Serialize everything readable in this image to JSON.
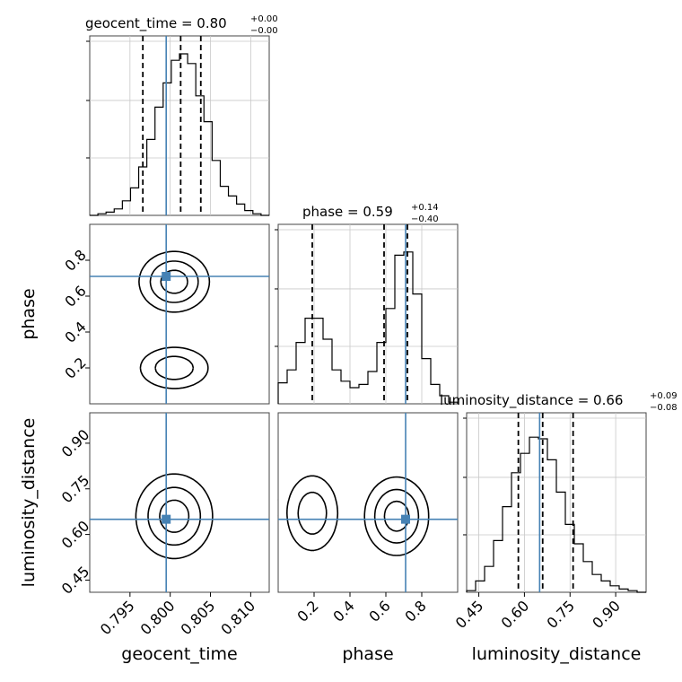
{
  "chart_data": {
    "type": "corner",
    "truth_color": "#4682b4",
    "parameters": [
      "geocent_time",
      "phase",
      "luminosity_distance"
    ],
    "truths": {
      "geocent_time": 0.7995,
      "phase": 0.71,
      "luminosity_distance": 0.65
    },
    "titles": {
      "geocent_time": {
        "text": "geocent_time = 0.80",
        "plus": "+0.00",
        "minus": "−0.00"
      },
      "phase": {
        "text": "phase = 0.59",
        "plus": "+0.14",
        "minus": "−0.40"
      },
      "luminosity_distance": {
        "text": "luminosity_distance = 0.66",
        "plus": "+0.09",
        "minus": "−0.08"
      }
    },
    "quantiles": {
      "geocent_time": [
        0.7966,
        0.8013,
        0.8038
      ],
      "phase": [
        0.19,
        0.59,
        0.72
      ],
      "luminosity_distance": [
        0.58,
        0.66,
        0.76
      ]
    },
    "axes": {
      "geocent_time": {
        "range": [
          0.79,
          0.8123
        ],
        "ticks": [
          0.795,
          0.8,
          0.805,
          0.81
        ],
        "tick_labels": [
          "0.795",
          "0.800",
          "0.805",
          "0.810"
        ],
        "label": "geocent_time"
      },
      "phase": {
        "range": [
          0.0,
          1.0
        ],
        "ticks": [
          0.2,
          0.4,
          0.6,
          0.8
        ],
        "tick_labels": [
          "0.2",
          "0.4",
          "0.6",
          "0.8"
        ],
        "label": "phase"
      },
      "luminosity_distance": {
        "range": [
          0.41,
          1.0
        ],
        "ticks": [
          0.45,
          0.6,
          0.75,
          0.9
        ],
        "tick_labels": [
          "0.45",
          "0.60",
          "0.75",
          "0.90"
        ],
        "label": "luminosity_distance"
      }
    },
    "histograms": {
      "geocent_time": [
        0.0,
        0.01,
        0.02,
        0.04,
        0.09,
        0.17,
        0.3,
        0.47,
        0.67,
        0.82,
        0.96,
        1.0,
        0.94,
        0.74,
        0.58,
        0.34,
        0.18,
        0.12,
        0.07,
        0.03,
        0.01,
        0.0
      ],
      "phase": [
        0.13,
        0.21,
        0.38,
        0.53,
        0.53,
        0.4,
        0.21,
        0.14,
        0.1,
        0.12,
        0.2,
        0.38,
        0.59,
        0.92,
        0.94,
        0.68,
        0.28,
        0.12,
        0.05,
        0.01
      ],
      "luminosity_distance": [
        0.01,
        0.07,
        0.16,
        0.32,
        0.53,
        0.74,
        0.86,
        0.96,
        0.95,
        0.82,
        0.62,
        0.42,
        0.3,
        0.19,
        0.11,
        0.07,
        0.04,
        0.02,
        0.01,
        0.0
      ]
    },
    "joint_modes": [
      {
        "x": "geocent_time",
        "y": "phase",
        "peaks": [
          {
            "cx": 0.8005,
            "cy": 0.68,
            "sx": 0.0022,
            "sy": 0.085,
            "w": 1.0
          },
          {
            "cx": 0.8005,
            "cy": 0.2,
            "sx": 0.0024,
            "sy": 0.065,
            "w": 0.65
          }
        ]
      },
      {
        "x": "geocent_time",
        "y": "luminosity_distance",
        "peaks": [
          {
            "cx": 0.8005,
            "cy": 0.66,
            "sx": 0.0024,
            "sy": 0.07,
            "w": 1.0
          }
        ]
      },
      {
        "x": "phase",
        "y": "luminosity_distance",
        "peaks": [
          {
            "cx": 0.66,
            "cy": 0.66,
            "sx": 0.09,
            "sy": 0.065,
            "w": 1.0
          },
          {
            "cx": 0.19,
            "cy": 0.67,
            "sx": 0.08,
            "sy": 0.07,
            "w": 0.65
          }
        ]
      }
    ],
    "grid": true
  }
}
